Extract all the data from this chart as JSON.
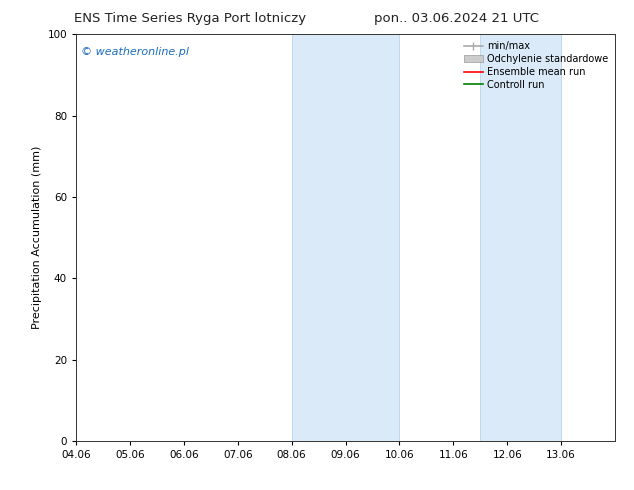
{
  "title_left": "ENS Time Series Ryga Port lotniczy",
  "title_right": "pon.. 03.06.2024 21 UTC",
  "ylabel": "Precipitation Accumulation (mm)",
  "watermark": "© weatheronline.pl",
  "watermark_color": "#1a6bbf",
  "xlim": [
    4.06,
    14.06
  ],
  "ylim": [
    0,
    100
  ],
  "yticks": [
    0,
    20,
    40,
    60,
    80,
    100
  ],
  "xtick_labels": [
    "04.06",
    "05.06",
    "06.06",
    "07.06",
    "08.06",
    "09.06",
    "10.06",
    "11.06",
    "12.06",
    "13.06"
  ],
  "xtick_positions": [
    4.06,
    5.06,
    6.06,
    7.06,
    8.06,
    9.06,
    10.06,
    11.06,
    12.06,
    13.06
  ],
  "shaded_bands": [
    {
      "x_start": 8.06,
      "x_end": 10.06
    },
    {
      "x_start": 11.56,
      "x_end": 13.06
    }
  ],
  "band_color": "#daeaf8",
  "band_edge_color": "#b8d4ec",
  "legend_items": [
    {
      "label": "min/max",
      "color": "#aaaaaa",
      "linewidth": 1.2
    },
    {
      "label": "Odchylenie standardowe",
      "color": "#cccccc",
      "linewidth": 5
    },
    {
      "label": "Ensemble mean run",
      "color": "red",
      "linewidth": 1.2
    },
    {
      "label": "Controll run",
      "color": "green",
      "linewidth": 1.2
    }
  ],
  "background_color": "#ffffff",
  "title_fontsize": 9.5,
  "axis_fontsize": 8,
  "tick_fontsize": 7.5,
  "watermark_fontsize": 8,
  "legend_fontsize": 7
}
